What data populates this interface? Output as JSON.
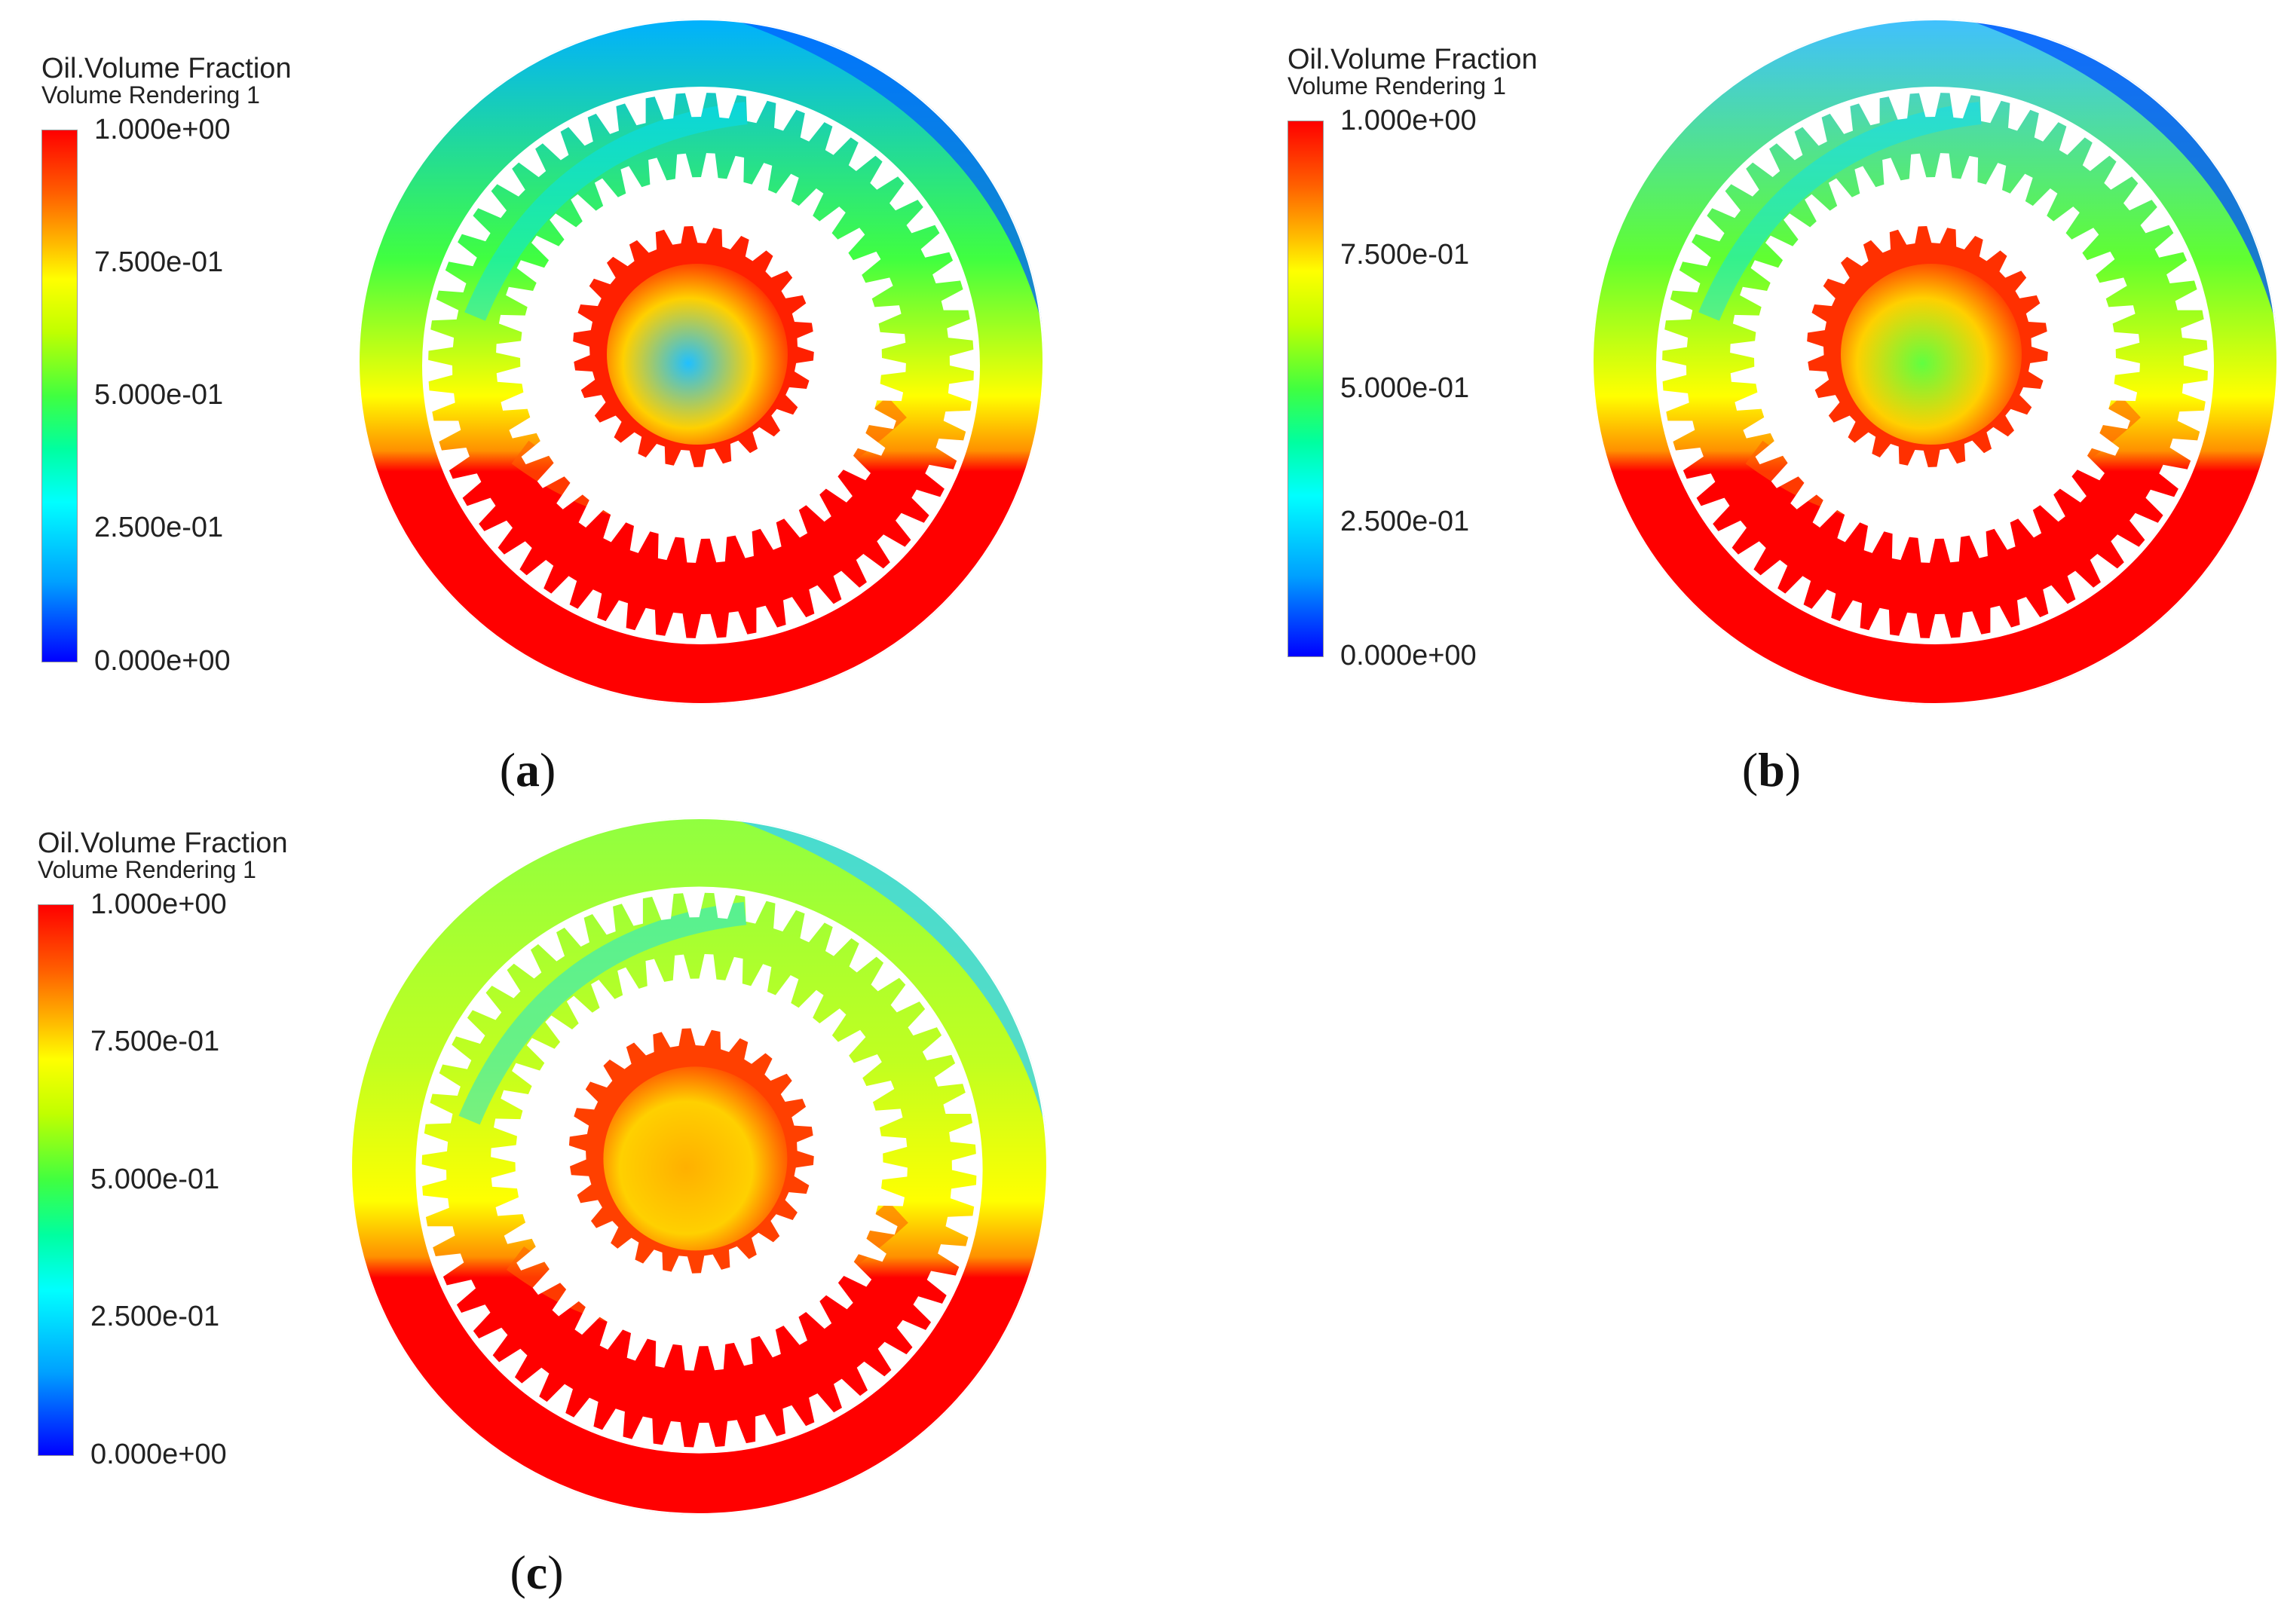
{
  "figure": {
    "panels": [
      {
        "id": "a",
        "caption_open": "(",
        "caption_letter": "a",
        "caption_close": ")",
        "legend": {
          "title": "Oil.Volume Fraction",
          "subtitle": "Volume Rendering 1",
          "ticks": [
            "1.000e+00",
            "7.500e-01",
            "5.000e-01",
            "2.500e-01",
            "0.000e+00"
          ]
        }
      },
      {
        "id": "b",
        "caption_open": "(",
        "caption_letter": "b",
        "caption_close": ")",
        "legend": {
          "title": "Oil.Volume Fraction",
          "subtitle": "Volume Rendering 1",
          "ticks": [
            "1.000e+00",
            "7.500e-01",
            "5.000e-01",
            "2.500e-01",
            "0.000e+00"
          ]
        }
      },
      {
        "id": "c",
        "caption_open": "(",
        "caption_letter": "c",
        "caption_close": ")",
        "legend": {
          "title": "Oil.Volume Fraction",
          "subtitle": "Volume Rendering 1",
          "ticks": [
            "1.000e+00",
            "7.500e-01",
            "5.000e-01",
            "2.500e-01",
            "0.000e+00"
          ]
        }
      }
    ],
    "colormap": [
      "#0000ff",
      "#00a0ff",
      "#00ffff",
      "#00ff80",
      "#40ff00",
      "#c0ff00",
      "#ffff00",
      "#ffa000",
      "#ff3000",
      "#ff0000"
    ],
    "gear_color": "#ffffff"
  }
}
